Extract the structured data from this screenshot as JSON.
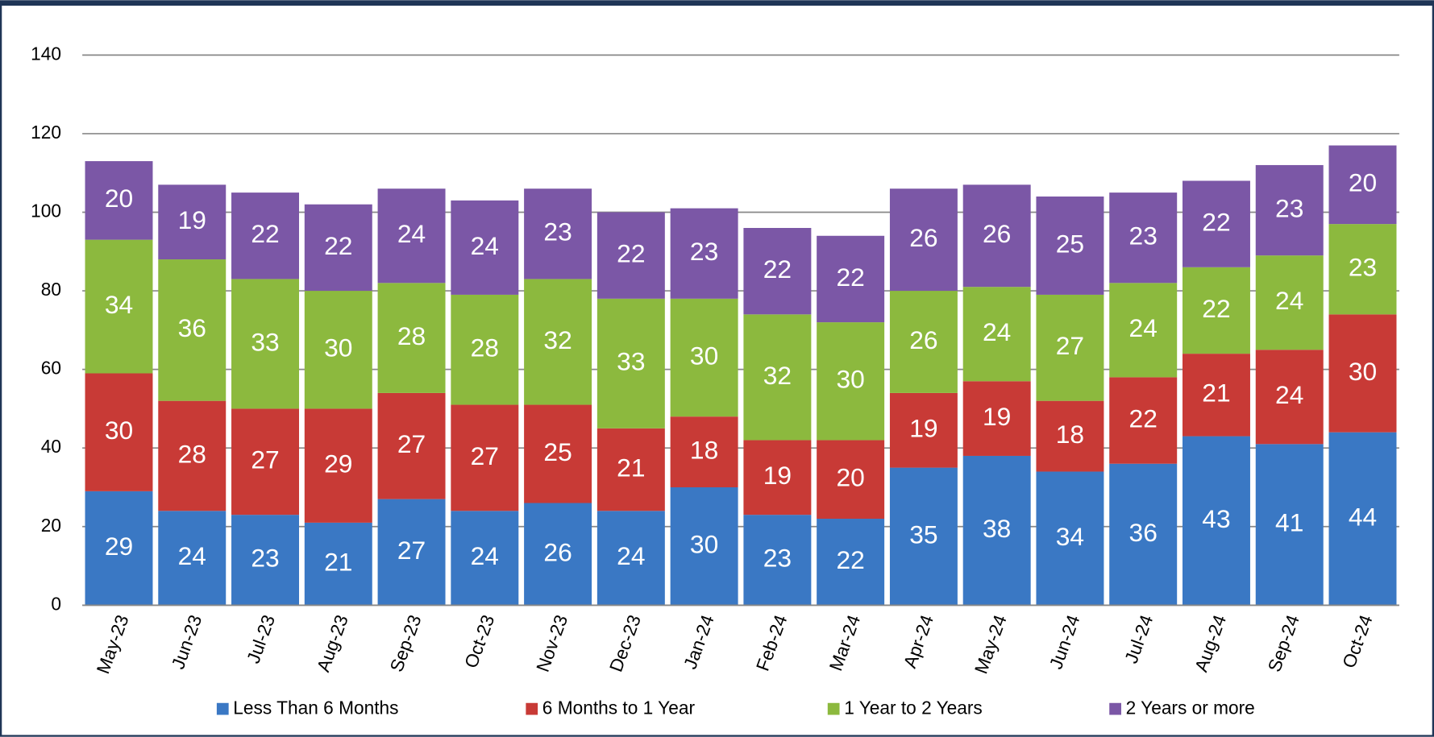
{
  "chart_data": {
    "type": "stacked_bar",
    "categories": [
      "May-23",
      "Jun-23",
      "Jul-23",
      "Aug-23",
      "Sep-23",
      "Oct-23",
      "Nov-23",
      "Dec-23",
      "Jan-24",
      "Feb-24",
      "Mar-24",
      "Apr-24",
      "May-24",
      "Jun-24",
      "Jul-24",
      "Aug-24",
      "Sep-24",
      "Oct-24"
    ],
    "series": [
      {
        "name": "Less Than 6 Months",
        "color": "#3a78c4",
        "values": [
          29,
          24,
          23,
          21,
          27,
          24,
          26,
          24,
          30,
          23,
          22,
          35,
          38,
          34,
          36,
          43,
          41,
          44
        ]
      },
      {
        "name": "6 Months to 1 Year",
        "color": "#c83a36",
        "values": [
          30,
          28,
          27,
          29,
          27,
          27,
          25,
          21,
          18,
          19,
          20,
          19,
          19,
          18,
          22,
          21,
          24,
          30
        ]
      },
      {
        "name": "1 Year to 2 Years",
        "color": "#8cb93e",
        "values": [
          34,
          36,
          33,
          30,
          28,
          28,
          32,
          33,
          30,
          32,
          30,
          26,
          24,
          27,
          24,
          22,
          24,
          23
        ]
      },
      {
        "name": "2 Years or more",
        "color": "#7b57a6",
        "values": [
          20,
          19,
          22,
          22,
          24,
          24,
          23,
          22,
          23,
          22,
          22,
          26,
          26,
          25,
          23,
          22,
          23,
          20
        ]
      }
    ],
    "ylim": [
      0,
      140
    ],
    "yticks": [
      0,
      20,
      40,
      60,
      80,
      100,
      120,
      140
    ],
    "grid": true,
    "legend": "bottom"
  }
}
